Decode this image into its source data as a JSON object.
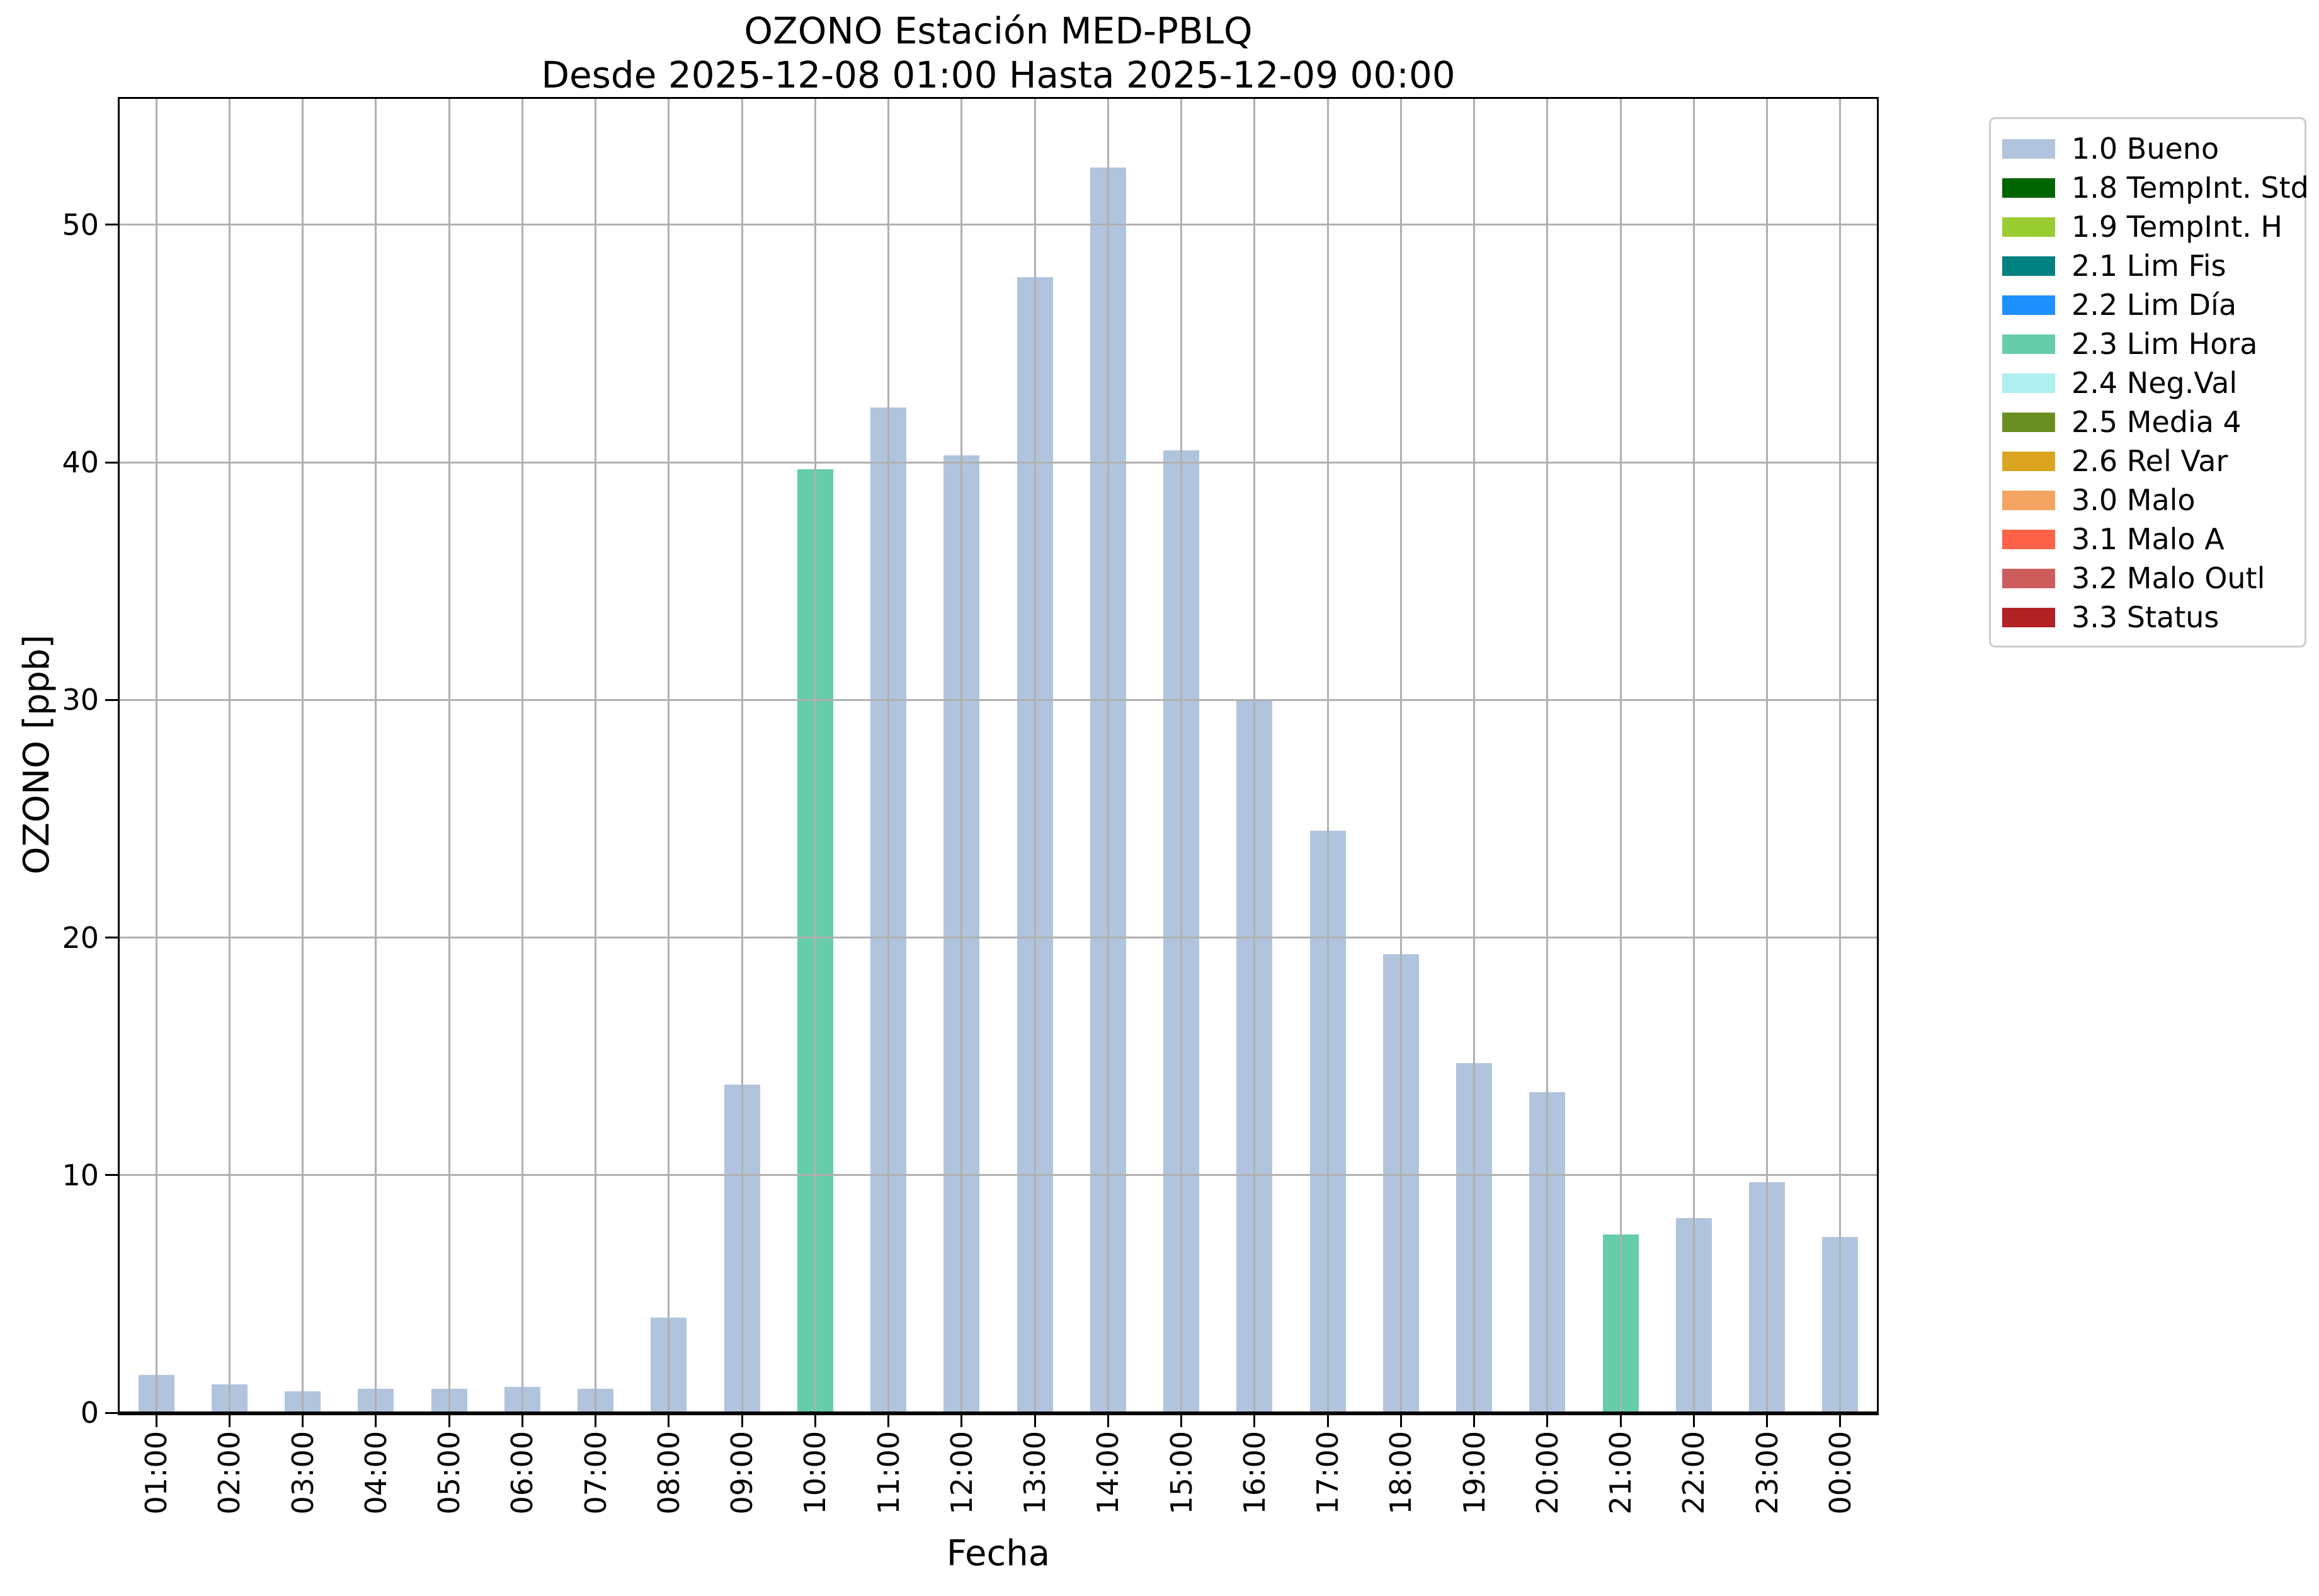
{
  "chart_data": {
    "type": "bar",
    "title": "OZONO Estación MED-PBLQ",
    "subtitle": "Desde 2025-12-08 01:00 Hasta 2025-12-09 00:00",
    "xlabel": "Fecha",
    "ylabel": "OZONO [ppb]",
    "ylim": [
      0,
      55.3
    ],
    "yticks": [
      0,
      10,
      20,
      30,
      40,
      50
    ],
    "grid": true,
    "legend_position": "outside-upper-right",
    "categories": [
      "01:00",
      "02:00",
      "03:00",
      "04:00",
      "05:00",
      "06:00",
      "07:00",
      "08:00",
      "09:00",
      "10:00",
      "11:00",
      "12:00",
      "13:00",
      "14:00",
      "15:00",
      "16:00",
      "17:00",
      "18:00",
      "19:00",
      "20:00",
      "21:00",
      "22:00",
      "23:00",
      "00:00"
    ],
    "values": [
      1.6,
      1.2,
      0.9,
      1.0,
      1.0,
      1.1,
      1.0,
      4.0,
      13.8,
      39.7,
      42.3,
      40.3,
      47.8,
      52.4,
      40.5,
      30.0,
      24.5,
      19.3,
      14.7,
      13.5,
      7.5,
      8.2,
      9.7,
      7.4
    ],
    "point_status": [
      "1.0 Bueno",
      "1.0 Bueno",
      "1.0 Bueno",
      "1.0 Bueno",
      "1.0 Bueno",
      "1.0 Bueno",
      "1.0 Bueno",
      "1.0 Bueno",
      "1.0 Bueno",
      "2.3 Lim Hora",
      "1.0 Bueno",
      "1.0 Bueno",
      "1.0 Bueno",
      "1.0 Bueno",
      "1.0 Bueno",
      "1.0 Bueno",
      "1.0 Bueno",
      "1.0 Bueno",
      "1.0 Bueno",
      "1.0 Bueno",
      "2.3 Lim Hora",
      "1.0 Bueno",
      "1.0 Bueno",
      "1.0 Bueno"
    ],
    "status_colors": {
      "1.0 Bueno": "#b0c4de",
      "2.3 Lim Hora": "#66cdaa"
    },
    "colors": {
      "grid": "#b0b0b0",
      "spine": "#000000",
      "legend_border": "#cccccc",
      "background": "#ffffff"
    },
    "legend": [
      {
        "label": "1.0 Bueno",
        "color": "#b0c4de"
      },
      {
        "label": "1.8 TempInt. Std",
        "color": "#006400"
      },
      {
        "label": "1.9 TempInt. H",
        "color": "#9acd32"
      },
      {
        "label": "2.1 Lim Fis",
        "color": "#008080"
      },
      {
        "label": "2.2 Lim Día",
        "color": "#1e90ff"
      },
      {
        "label": "2.3 Lim Hora",
        "color": "#66cdaa"
      },
      {
        "label": "2.4 Neg.Val",
        "color": "#afeeee"
      },
      {
        "label": "2.5 Media 4",
        "color": "#6b8e23"
      },
      {
        "label": "2.6 Rel Var",
        "color": "#daa520"
      },
      {
        "label": "3.0 Malo",
        "color": "#f4a460"
      },
      {
        "label": "3.1 Malo A",
        "color": "#ff6347"
      },
      {
        "label": "3.2 Malo Outl",
        "color": "#cd5c5c"
      },
      {
        "label": "3.3 Status",
        "color": "#b22222"
      }
    ]
  }
}
